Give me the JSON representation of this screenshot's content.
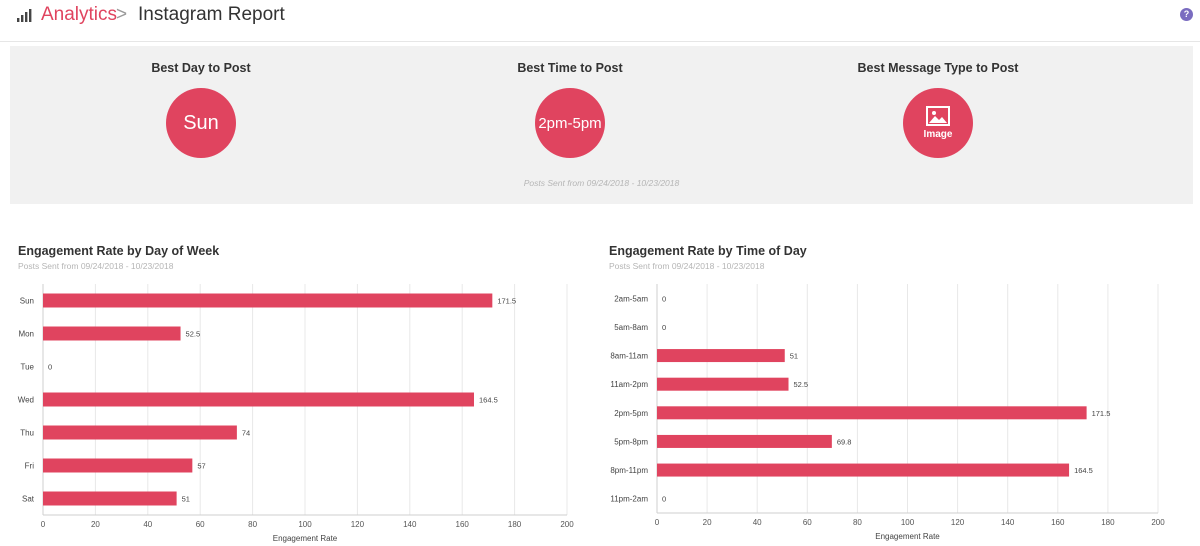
{
  "header": {
    "section": "Analytics",
    "separator": ">",
    "title": "Instagram Report",
    "help": "?"
  },
  "summary": {
    "best_day": {
      "label": "Best Day to Post",
      "value": "Sun"
    },
    "best_time": {
      "label": "Best Time to Post",
      "value": "2pm-5pm"
    },
    "best_type": {
      "label": "Best Message Type to Post",
      "value": "Image",
      "icon": "image-icon"
    },
    "range": "Posts Sent from 09/24/2018 - 10/23/2018"
  },
  "colors": {
    "accent": "#e0445f",
    "help": "#7a6cc0",
    "panel": "#f1f1f1"
  },
  "chart_data": [
    {
      "type": "bar",
      "orientation": "horizontal",
      "title": "Engagement Rate by Day of Week",
      "subtitle": "Posts Sent from 09/24/2018 - 10/23/2018",
      "categories": [
        "Sun",
        "Mon",
        "Tue",
        "Wed",
        "Thu",
        "Fri",
        "Sat"
      ],
      "values": [
        171.5,
        52.5,
        0,
        164.5,
        74,
        57,
        51
      ],
      "value_labels": [
        "171.5",
        "52.5",
        "0",
        "164.5",
        "74",
        "57",
        "51"
      ],
      "xlabel": "Engagement Rate",
      "ylabel": "",
      "xlim": [
        0,
        200
      ],
      "ticks": [
        0,
        20,
        40,
        60,
        80,
        100,
        120,
        140,
        160,
        180,
        200
      ],
      "grid": true
    },
    {
      "type": "bar",
      "orientation": "horizontal",
      "title": "Engagement Rate by Time of Day",
      "subtitle": "Posts Sent from 09/24/2018 - 10/23/2018",
      "categories": [
        "2am-5am",
        "5am-8am",
        "8am-11am",
        "11am-2pm",
        "2pm-5pm",
        "5pm-8pm",
        "8pm-11pm",
        "11pm-2am"
      ],
      "values": [
        0,
        0,
        51,
        52.5,
        171.5,
        69.8,
        164.5,
        0
      ],
      "value_labels": [
        "0",
        "0",
        "51",
        "52.5",
        "171.5",
        "69.8",
        "164.5",
        "0"
      ],
      "xlabel": "Engagement Rate",
      "ylabel": "",
      "xlim": [
        0,
        200
      ],
      "ticks": [
        0,
        20,
        40,
        60,
        80,
        100,
        120,
        140,
        160,
        180,
        200
      ],
      "grid": true
    }
  ]
}
